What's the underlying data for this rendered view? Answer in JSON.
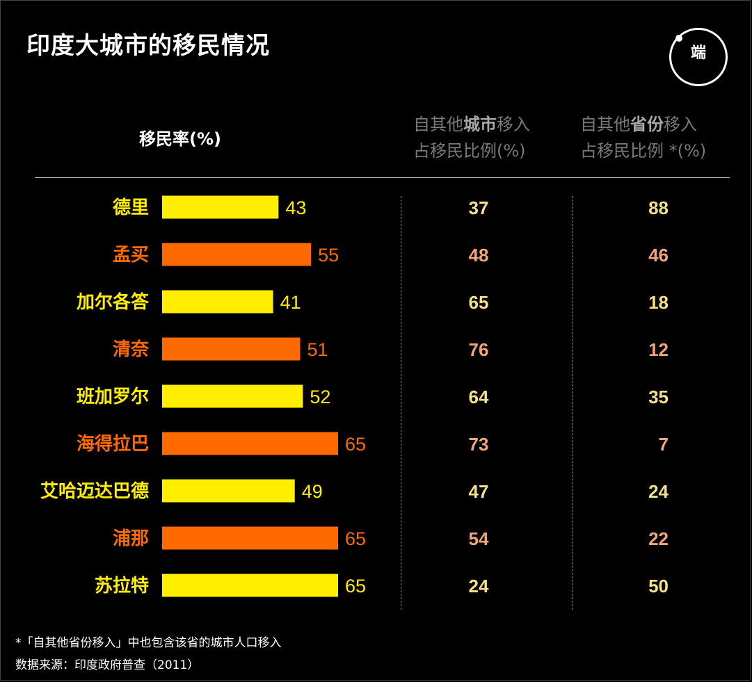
{
  "title": "印度大城市的移民情况",
  "logo_text": "端",
  "headers": {
    "rate": "移民率(%)",
    "city_line1_a": "自其他",
    "city_line1_b": "城市",
    "city_line1_c": "移入",
    "city_line2": "占移民比例(%)",
    "prov_line1_a": "自其他",
    "prov_line1_b": "省份",
    "prov_line1_c": "移入",
    "prov_line2": "占移民比例 *(%)"
  },
  "colors": {
    "yellow": "#ffee00",
    "orange": "#ff6a00",
    "yellow_num": "#f5e08a",
    "orange_num": "#f2a57a"
  },
  "chart_data": {
    "type": "bar",
    "orientation": "horizontal",
    "categories": [
      "德里",
      "孟买",
      "加尔各答",
      "清奈",
      "班加罗尔",
      "海得拉巴",
      "艾哈迈达巴德",
      "浦那",
      "苏拉特"
    ],
    "series": [
      {
        "name": "移民率(%)",
        "values": [
          43,
          55,
          41,
          51,
          52,
          65,
          49,
          65,
          65
        ]
      }
    ],
    "table_columns": [
      {
        "name": "自其他城市移入占移民比例(%)",
        "values": [
          37,
          48,
          65,
          76,
          64,
          73,
          47,
          54,
          24
        ]
      },
      {
        "name": "自其他省份移入占移民比例 *(%)",
        "values": [
          88,
          46,
          18,
          12,
          35,
          7,
          24,
          22,
          50
        ]
      }
    ],
    "bar_colors": [
      "yellow",
      "orange",
      "yellow",
      "orange",
      "yellow",
      "orange",
      "yellow",
      "orange",
      "yellow"
    ],
    "xlim": [
      0,
      65
    ],
    "grid": false
  },
  "footnote": "*「自其他省份移入」中也包含该省的城市人口移入",
  "source": "数据来源：印度政府普查（2011）"
}
